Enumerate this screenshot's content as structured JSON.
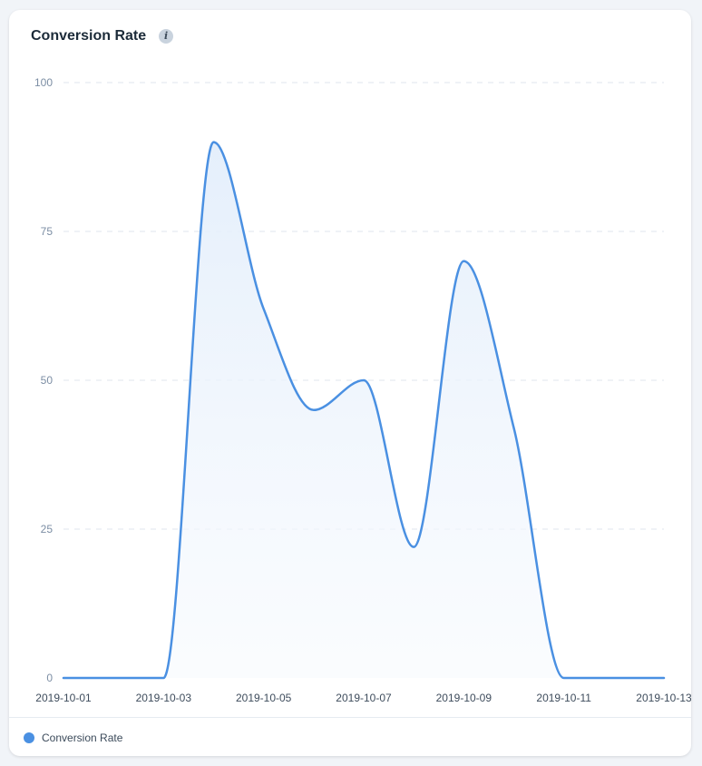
{
  "card": {
    "title": "Conversion Rate"
  },
  "colors": {
    "series": "#4a90e2",
    "grid": "#dfe5ec",
    "area_top": "#e3eefb",
    "area_bottom": "#f7fafe"
  },
  "icons": {
    "info": "info-icon",
    "info_glyph": "i"
  },
  "chart_data": {
    "type": "area",
    "title": "",
    "xlabel": "",
    "ylabel": "",
    "ylim": [
      0,
      100
    ],
    "y_ticks": [
      0,
      25,
      50,
      75,
      100
    ],
    "x_tick_labels": [
      "2019-10-01",
      "2019-10-03",
      "2019-10-05",
      "2019-10-07",
      "2019-10-09",
      "2019-10-11",
      "2019-10-13"
    ],
    "grid": true,
    "legend_position": "bottom-left",
    "x": [
      "2019-10-01",
      "2019-10-02",
      "2019-10-03",
      "2019-10-04",
      "2019-10-05",
      "2019-10-06",
      "2019-10-07",
      "2019-10-08",
      "2019-10-09",
      "2019-10-10",
      "2019-10-11",
      "2019-10-12",
      "2019-10-13"
    ],
    "series": [
      {
        "name": "Conversion Rate",
        "values": [
          0,
          0,
          0,
          90,
          62,
          45,
          50,
          22,
          70,
          42,
          0,
          0,
          0
        ]
      }
    ]
  },
  "legend": {
    "items": [
      {
        "label": "Conversion Rate"
      }
    ]
  }
}
